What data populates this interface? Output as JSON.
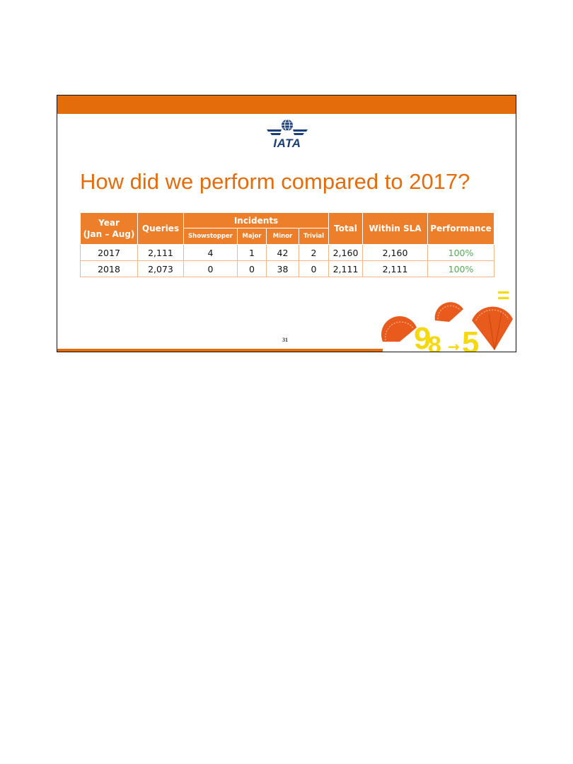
{
  "slide": {
    "logo_text": "IATA",
    "title": "How did we perform compared to 2017?",
    "page_number": "31"
  },
  "table": {
    "headers": {
      "year": "Year",
      "year_range": "(Jan – Aug)",
      "queries": "Queries",
      "incidents": "Incidents",
      "showstopper": "Showstopper",
      "major": "Major",
      "minor": "Minor",
      "trivial": "Trivial",
      "total": "Total",
      "within_sla": "Within SLA",
      "performance": "Performance"
    },
    "rows": [
      {
        "year": "2017",
        "queries": "2,111",
        "showstopper": "4",
        "major": "1",
        "minor": "42",
        "trivial": "2",
        "total": "2,160",
        "within_sla": "2,160",
        "performance": "100%"
      },
      {
        "year": "2018",
        "queries": "2,073",
        "showstopper": "0",
        "major": "0",
        "minor": "38",
        "trivial": "0",
        "total": "2,111",
        "within_sla": "2,111",
        "performance": "100%"
      }
    ]
  },
  "decoration": {
    "glyphs": [
      "9",
      "8",
      "→",
      "5",
      "="
    ]
  },
  "colors": {
    "accent_orange": "#e46c0a",
    "header_orange": "#ee7f2a",
    "cell_border": "#f3b58a",
    "logo_blue": "#1b3f79",
    "performance_green": "#4caf50",
    "decor_yellow": "#f5d80f"
  }
}
